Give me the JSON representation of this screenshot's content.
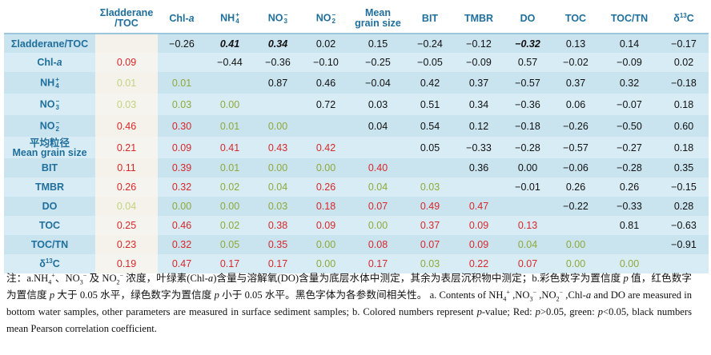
{
  "table": {
    "columns": [
      {
        "base": "Σladderane",
        "line2": "/TOC"
      },
      {
        "base": "Chl-",
        "ital": "a"
      },
      {
        "base": "NH",
        "sub": "4",
        "sup": "+"
      },
      {
        "base": "NO",
        "sub": "3",
        "sup": "−"
      },
      {
        "base": "NO",
        "sub": "2",
        "sup": "−"
      },
      {
        "base": "Mean",
        "line2": "grain size"
      },
      {
        "base": "BIT"
      },
      {
        "base": "TMBR"
      },
      {
        "base": "DO"
      },
      {
        "base": "TOC"
      },
      {
        "base": "TOC/TN"
      },
      {
        "base": "δ",
        "sup": "13",
        "after": "C"
      }
    ],
    "rows": [
      {
        "label": "Σladderane/TOC",
        "cells": [
          "",
          "−0.26",
          "0.41",
          "0.34",
          "0.02",
          "0.15",
          "−0.24",
          "−0.12",
          "−0.32",
          "0.13",
          "0.14",
          "−0.17"
        ]
      },
      {
        "label": "Chl-",
        "label_ital": "a",
        "cells": [
          "0.09",
          "",
          "−0.44",
          "−0.36",
          "−0.10",
          "−0.25",
          "−0.05",
          "−0.09",
          "0.57",
          "−0.02",
          "−0.09",
          "0.02"
        ]
      },
      {
        "label": "NH",
        "label_sub": "4",
        "label_sup": "+",
        "cells": [
          "0.01",
          "0.01",
          "",
          "0.87",
          "0.46",
          "−0.04",
          "0.42",
          "0.37",
          "−0.57",
          "0.37",
          "0.32",
          "−0.18"
        ]
      },
      {
        "label": "NO",
        "label_sub": "3",
        "label_sup": "−",
        "cells": [
          "0.03",
          "0.03",
          "0.00",
          "",
          "0.72",
          "0.03",
          "0.51",
          "0.34",
          "−0.36",
          "0.06",
          "−0.07",
          "0.18"
        ]
      },
      {
        "label": "NO",
        "label_sub": "2",
        "label_sup": "−",
        "cells": [
          "0.46",
          "0.30",
          "0.01",
          "0.00",
          "",
          "0.04",
          "0.54",
          "0.12",
          "−0.18",
          "−0.26",
          "−0.50",
          "0.60"
        ]
      },
      {
        "label": "平均粒径",
        "label_line2": "Mean grain size",
        "cells": [
          "0.21",
          "0.09",
          "0.41",
          "0.43",
          "0.42",
          "",
          "0.05",
          "−0.33",
          "−0.28",
          "−0.57",
          "−0.27",
          "0.18"
        ]
      },
      {
        "label": "BIT",
        "cells": [
          "0.11",
          "0.39",
          "0.01",
          "0.00",
          "0.00",
          "0.40",
          "",
          "0.36",
          "0.00",
          "−0.06",
          "−0.28",
          "0.35"
        ]
      },
      {
        "label": "TMBR",
        "cells": [
          "0.26",
          "0.32",
          "0.02",
          "0.04",
          "0.26",
          "0.04",
          "0.03",
          "",
          "−0.01",
          "0.26",
          "0.26",
          "−0.15"
        ]
      },
      {
        "label": "DO",
        "cells": [
          "0.04",
          "0.00",
          "0.00",
          "0.03",
          "0.18",
          "0.07",
          "0.49",
          "0.47",
          "",
          "−0.22",
          "−0.33",
          "0.28"
        ]
      },
      {
        "label": "TOC",
        "cells": [
          "0.25",
          "0.46",
          "0.02",
          "0.38",
          "0.09",
          "0.00",
          "0.37",
          "0.09",
          "0.13",
          "",
          "0.81",
          "−0.63"
        ]
      },
      {
        "label": "TOC/TN",
        "cells": [
          "0.23",
          "0.32",
          "0.05",
          "0.35",
          "0.00",
          "0.08",
          "0.07",
          "0.09",
          "0.04",
          "0.00",
          "",
          "−0.91"
        ]
      },
      {
        "label": "δ",
        "label_sup": "13",
        "label_after": "C",
        "cells": [
          "0.19",
          "0.47",
          "0.17",
          "0.17",
          "0.00",
          "0.17",
          "0.03",
          "0.22",
          "0.07",
          "0.00",
          "0.00",
          ""
        ]
      }
    ],
    "colors": {
      "red": "#d9272a",
      "green": "#8fa83a",
      "green_light": "#c3d27d",
      "black": "#111111",
      "header_text": "#1f6f9c",
      "row_band": "#c9e3ef",
      "first_col": "#f4f2ea"
    }
  },
  "note": {
    "cn_1": "注：a.NH",
    "cn_1_sub": "4",
    "cn_1_sup": "+",
    "cn_2": "、NO",
    "cn_2_sub": "3",
    "cn_2_sup": "−",
    "cn_3": " 及 NO",
    "cn_3_sub": "2",
    "cn_3_sup": "−",
    "cn_4": " 浓度，叶绿素(Chl-",
    "cn_4_ital": "a",
    "cn_5": ")含量与溶解氧(DO)含量为底层水体中测定，其余为表层沉积物中测定；b.彩色数字为置信度 ",
    "cn_5_ital": "p",
    "cn_6": " 值，红色数字为置信度 ",
    "cn_6_ital": "p",
    "cn_7": " 大于 0.05 水平，绿色数字为置信度 ",
    "cn_7_ital": "p",
    "cn_8": " 小于 0.05 水平。黑色字体为各参数间相关性。",
    "en_1": "a. Contents of NH",
    "en_1_sub": "4",
    "en_1_sup": "+",
    "en_2": " ,NO",
    "en_2_sub": "3",
    "en_2_sup": "−",
    "en_3": " ,NO",
    "en_3_sub": "2",
    "en_3_sup": "−",
    "en_4": " ,Chl-",
    "en_4_ital": "a",
    "en_5": " and DO are measured in bottom water samples, other parameters are measured in surface sediment samples; b. Colored numbers represent ",
    "en_5_ital": "p",
    "en_6": "-value; Red: ",
    "en_6_ital": "p",
    "en_7": ">0.05, green: ",
    "en_7_ital": "p",
    "en_8": "<0.05, black numbers mean Pearson correlation coefficient."
  }
}
